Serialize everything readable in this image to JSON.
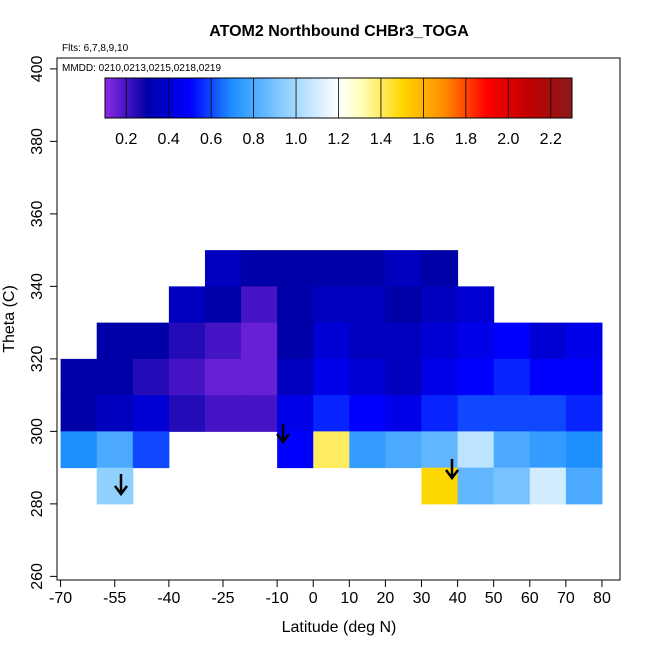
{
  "chart_data": {
    "type": "heatmap",
    "title": "ATOM2 Northbound CHBr3_TOGA",
    "subtitle": "Flts: 6,7,8,9,10",
    "annotation": "MMDD: 0210,0213,0215,0218,0219",
    "x_label": "Latitude (deg N)",
    "y_label": "Theta (C)",
    "x": [
      -70,
      -60,
      -50,
      -40,
      -30,
      -20,
      -10,
      0,
      10,
      20,
      30,
      40,
      50,
      60,
      70,
      80
    ],
    "y": [
      350,
      340,
      330,
      320,
      310,
      300,
      290,
      280
    ],
    "z": [
      [
        null,
        null,
        null,
        null,
        0.35,
        0.3,
        0.3,
        0.3,
        0.3,
        0.35,
        0.3,
        null,
        null,
        null,
        null
      ],
      [
        null,
        null,
        null,
        0.35,
        0.3,
        0.2,
        0.3,
        0.35,
        0.35,
        0.3,
        0.35,
        0.4,
        null,
        null,
        null
      ],
      [
        null,
        0.3,
        0.3,
        0.25,
        0.2,
        0.15,
        0.3,
        0.4,
        0.35,
        0.35,
        0.4,
        0.45,
        0.5,
        0.4,
        0.45
      ],
      [
        0.3,
        0.3,
        0.25,
        0.2,
        0.15,
        0.15,
        0.35,
        0.45,
        0.4,
        0.35,
        0.45,
        0.5,
        0.55,
        0.5,
        0.5
      ],
      [
        0.3,
        0.35,
        0.4,
        0.25,
        0.2,
        0.2,
        0.45,
        0.55,
        0.5,
        0.45,
        0.55,
        0.6,
        0.6,
        0.6,
        0.55
      ],
      [
        0.7,
        0.8,
        0.6,
        null,
        null,
        null,
        0.5,
        1.4,
        0.75,
        0.8,
        0.85,
        1.05,
        0.8,
        0.75,
        0.7
      ],
      [
        null,
        0.95,
        null,
        null,
        null,
        null,
        null,
        null,
        null,
        null,
        1.5,
        0.85,
        0.9,
        1.1,
        0.8
      ]
    ],
    "xlim": [
      -71,
      85
    ],
    "xticks": [
      -70,
      -55,
      -40,
      -25,
      -10,
      0,
      10,
      20,
      30,
      40,
      50,
      60,
      70,
      80
    ],
    "ylim": [
      259,
      403
    ],
    "yticks": [
      260,
      280,
      300,
      320,
      340,
      360,
      380,
      400
    ],
    "clim": [
      0.1,
      2.3
    ],
    "cticks": [
      0.2,
      0.4,
      0.6,
      0.8,
      {
        "value": 1,
        "label": "1.0"
      },
      1.2,
      1.4,
      1.6,
      1.8,
      {
        "value": 2,
        "label": "2.0"
      },
      2.2
    ],
    "colorscale": [
      [
        0.1,
        "#8a2be2"
      ],
      [
        0.3,
        "#0000a8"
      ],
      [
        0.5,
        "#0000ff"
      ],
      [
        0.7,
        "#1e8fff"
      ],
      [
        0.95,
        "#8fd0ff"
      ],
      [
        1.2,
        "#ffffff"
      ],
      [
        1.3,
        "#ffffc0"
      ],
      [
        1.5,
        "#ffd700"
      ],
      [
        1.7,
        "#ff8c00"
      ],
      [
        1.9,
        "#ff0000"
      ],
      [
        2.1,
        "#c00000"
      ],
      [
        2.3,
        "#8b1a1a"
      ]
    ]
  }
}
